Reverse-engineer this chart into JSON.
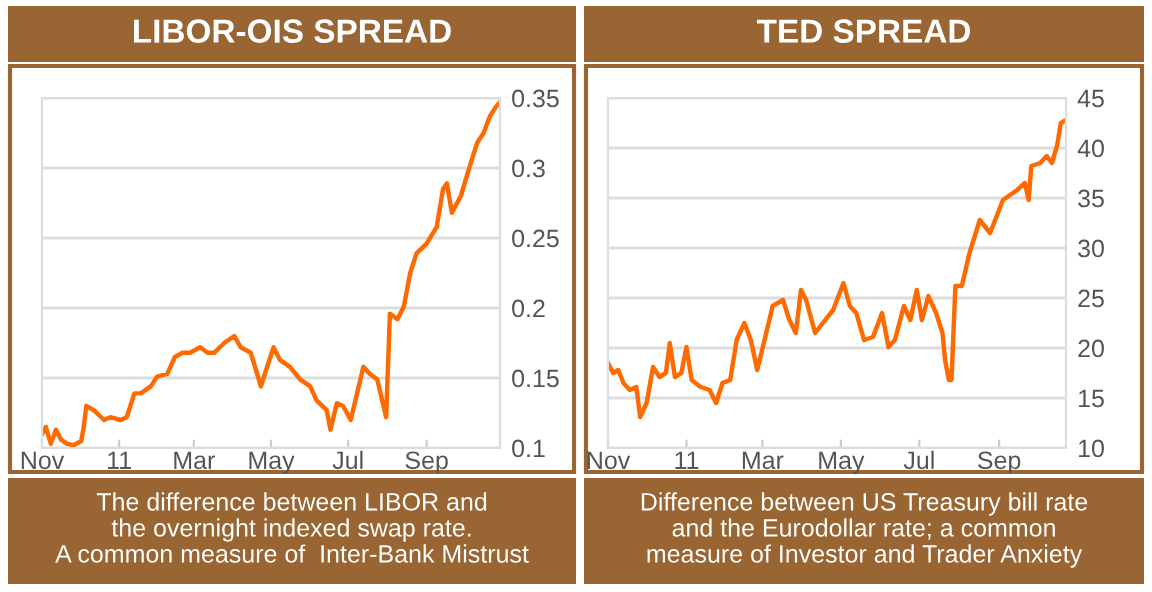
{
  "chart_data": [
    {
      "type": "line",
      "title": "LIBOR-OIS SPREAD",
      "annotations": [
        "The difference between LIBOR and\nthe overnight indexed swap rate.\nA common measure of  Inter-Bank Mistrust"
      ],
      "x": [
        "2010-11-01",
        "2010-11-04",
        "2010-11-08",
        "2010-11-12",
        "2010-11-16",
        "2010-11-21",
        "2010-11-26",
        "2010-12-02",
        "2010-12-04",
        "2010-12-06",
        "2010-12-12",
        "2010-12-20",
        "2010-12-25",
        "2011-01-02",
        "2011-01-07",
        "2011-01-13",
        "2011-01-18",
        "2011-01-26",
        "2011-01-31",
        "2011-02-08",
        "2011-02-14",
        "2011-02-20",
        "2011-02-26",
        "2011-03-06",
        "2011-03-12",
        "2011-03-17",
        "2011-03-25",
        "2011-04-02",
        "2011-04-07",
        "2011-04-15",
        "2011-04-23",
        "2011-04-28",
        "2011-05-03",
        "2011-05-08",
        "2011-05-16",
        "2011-05-24",
        "2011-06-01",
        "2011-06-06",
        "2011-06-14",
        "2011-06-17",
        "2011-06-22",
        "2011-06-27",
        "2011-07-03",
        "2011-07-08",
        "2011-07-13",
        "2011-07-18",
        "2011-07-24",
        "2011-07-31",
        "2011-08-03",
        "2011-08-09",
        "2011-08-14",
        "2011-08-19",
        "2011-08-24",
        "2011-09-01",
        "2011-09-09",
        "2011-09-14",
        "2011-09-17",
        "2011-09-21",
        "2011-09-28",
        "2011-10-05",
        "2011-10-11",
        "2011-10-16",
        "2011-10-21",
        "2011-10-26",
        "2011-10-29"
      ],
      "series": [
        {
          "color": "#ff6a00",
          "values": [
            0.11,
            0.115,
            0.103,
            0.113,
            0.106,
            0.103,
            0.102,
            0.105,
            0.115,
            0.13,
            0.127,
            0.12,
            0.122,
            0.12,
            0.122,
            0.139,
            0.139,
            0.144,
            0.151,
            0.153,
            0.165,
            0.168,
            0.168,
            0.172,
            0.168,
            0.168,
            0.175,
            0.18,
            0.172,
            0.168,
            0.144,
            0.158,
            0.172,
            0.163,
            0.158,
            0.149,
            0.144,
            0.134,
            0.127,
            0.113,
            0.132,
            0.13,
            0.12,
            0.139,
            0.158,
            0.153,
            0.149,
            0.122,
            0.196,
            0.192,
            0.201,
            0.225,
            0.239,
            0.246,
            0.258,
            0.285,
            0.289,
            0.268,
            0.28,
            0.301,
            0.318,
            0.325,
            0.337,
            0.344,
            0.347
          ]
        }
      ],
      "xlim": [
        "2010-11-01",
        "2011-10-29"
      ],
      "xticks": [
        {
          "value": "2010-11-01",
          "label": "Nov"
        },
        {
          "value": "2011-01-01",
          "label": "11"
        },
        {
          "value": "2011-03-01",
          "label": "Mar"
        },
        {
          "value": "2011-05-01",
          "label": "May"
        },
        {
          "value": "2011-07-01",
          "label": "Jul"
        },
        {
          "value": "2011-09-01",
          "label": "Sep"
        }
      ],
      "ylim": [
        0.1,
        0.35
      ],
      "yticks": [
        0.1,
        0.15,
        0.2,
        0.25,
        0.3,
        0.35
      ],
      "grid": "y"
    },
    {
      "type": "line",
      "title": "TED SPREAD",
      "annotations": [
        "Difference between US Treasury bill rate\nand the Eurodollar rate; a common\nmeasure of Investor and Trader Anxiety"
      ],
      "x": [
        "2010-11-01",
        "2010-11-05",
        "2010-11-09",
        "2010-11-13",
        "2010-11-18",
        "2010-11-23",
        "2010-11-26",
        "2010-12-01",
        "2010-12-06",
        "2010-12-11",
        "2010-12-16",
        "2010-12-19",
        "2010-12-23",
        "2010-12-28",
        "2011-01-01",
        "2011-01-05",
        "2011-01-12",
        "2011-01-19",
        "2011-01-24",
        "2011-01-29",
        "2011-02-04",
        "2011-02-09",
        "2011-02-15",
        "2011-02-20",
        "2011-02-25",
        "2011-03-04",
        "2011-03-09",
        "2011-03-17",
        "2011-03-22",
        "2011-03-27",
        "2011-03-31",
        "2011-04-04",
        "2011-04-11",
        "2011-04-17",
        "2011-04-25",
        "2011-05-03",
        "2011-05-08",
        "2011-05-13",
        "2011-05-19",
        "2011-05-26",
        "2011-06-02",
        "2011-06-07",
        "2011-06-12",
        "2011-06-19",
        "2011-06-24",
        "2011-06-29",
        "2011-07-03",
        "2011-07-08",
        "2011-07-14",
        "2011-07-19",
        "2011-07-21",
        "2011-07-24",
        "2011-07-26",
        "2011-07-29",
        "2011-08-03",
        "2011-08-09",
        "2011-08-17",
        "2011-08-25",
        "2011-09-04",
        "2011-09-15",
        "2011-09-21",
        "2011-09-24",
        "2011-09-26",
        "2011-10-03",
        "2011-10-08",
        "2011-10-12",
        "2011-10-16",
        "2011-10-19",
        "2011-10-23"
      ],
      "series": [
        {
          "color": "#ff6a00",
          "values": [
            18.5,
            17.5,
            17.8,
            16.5,
            15.8,
            16.1,
            13.1,
            14.5,
            18.1,
            17.1,
            17.5,
            20.5,
            17.1,
            17.5,
            20.1,
            16.8,
            16.1,
            15.8,
            14.5,
            16.5,
            16.8,
            20.8,
            22.5,
            20.8,
            17.8,
            21.5,
            24.2,
            24.8,
            22.8,
            21.5,
            25.8,
            24.8,
            21.5,
            22.5,
            23.8,
            26.5,
            24.2,
            23.5,
            20.8,
            21.1,
            23.5,
            20.1,
            20.8,
            24.2,
            22.8,
            25.8,
            22.8,
            25.2,
            23.5,
            21.5,
            18.8,
            16.8,
            16.8,
            26.2,
            26.2,
            29.5,
            32.8,
            31.5,
            34.8,
            35.8,
            36.5,
            34.8,
            38.2,
            38.5,
            39.2,
            38.5,
            40.2,
            42.5,
            42.8
          ]
        }
      ],
      "xlim": [
        "2010-11-01",
        "2011-10-23"
      ],
      "xticks": [
        {
          "value": "2010-11-01",
          "label": "Nov"
        },
        {
          "value": "2011-01-01",
          "label": "11"
        },
        {
          "value": "2011-03-01",
          "label": "Mar"
        },
        {
          "value": "2011-05-01",
          "label": "May"
        },
        {
          "value": "2011-07-01",
          "label": "Jul"
        },
        {
          "value": "2011-09-01",
          "label": "Sep"
        }
      ],
      "ylim": [
        10,
        45
      ],
      "yticks": [
        10,
        15,
        20,
        25,
        30,
        35,
        40,
        45
      ],
      "grid": "y"
    }
  ]
}
